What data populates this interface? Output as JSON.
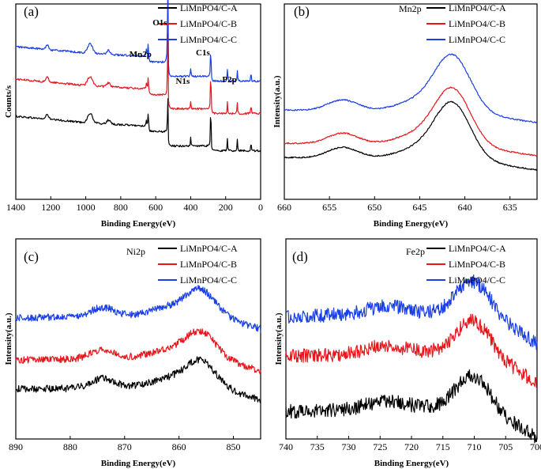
{
  "colors": {
    "A": "#000000",
    "B": "#e8161b",
    "C": "#1a3fe6"
  },
  "chart_data": [
    {
      "panel": "(a)",
      "type": "line",
      "xlabel": "Binding Energy(eV)",
      "ylabel": "Counts/s",
      "xlim": [
        1400,
        0
      ],
      "xticks": [
        1400,
        1200,
        1000,
        800,
        600,
        400,
        200,
        0
      ],
      "legend_placement": "top-right",
      "series": [
        {
          "name": "LiMnPO4/C-A",
          "key": "A",
          "offset": 0.0
        },
        {
          "name": "LiMnPO4/C-B",
          "key": "B",
          "offset": 1.0
        },
        {
          "name": "LiMnPO4/C-C",
          "key": "C",
          "offset": 2.0
        }
      ],
      "peaks": [
        {
          "label": "Mn2p",
          "x": 642
        },
        {
          "label": "O1s",
          "x": 531
        },
        {
          "label": "N1s",
          "x": 400
        },
        {
          "label": "C1s",
          "x": 285
        },
        {
          "label": "P2p",
          "x": 133
        }
      ]
    },
    {
      "panel": "(b)",
      "type": "line",
      "element": "Mn2p",
      "xlabel": "Binding Energy(eV)",
      "ylabel": "Intensity(a.u.)",
      "xlim": [
        660,
        632
      ],
      "xticks": [
        660,
        655,
        650,
        645,
        640,
        635
      ],
      "legend_placement": "top-right",
      "series": [
        {
          "name": "LiMnPO4/C-A",
          "key": "A"
        },
        {
          "name": "LiMnPO4/C-B",
          "key": "B"
        },
        {
          "name": "LiMnPO4/C-C",
          "key": "C"
        }
      ],
      "peaks": [
        {
          "x": 653.5
        },
        {
          "x": 641.5
        }
      ]
    },
    {
      "panel": "(c)",
      "type": "line",
      "element": "Ni2p",
      "xlabel": "Binding Energy(eV)",
      "ylabel": "Intensity(a.u.)",
      "xlim": [
        890,
        845
      ],
      "xticks": [
        890,
        880,
        870,
        860,
        850
      ],
      "legend_placement": "top-right",
      "series": [
        {
          "name": "LiMnPO4/C-A",
          "key": "A"
        },
        {
          "name": "LiMnPO4/C-B",
          "key": "B"
        },
        {
          "name": "LiMnPO4/C-C",
          "key": "C"
        }
      ],
      "peaks": [
        {
          "x": 874
        },
        {
          "x": 856
        }
      ]
    },
    {
      "panel": "(d)",
      "type": "line",
      "element": "Fe2p",
      "xlabel": "Binding Energy(eV)",
      "ylabel": "Intensity(a.u.)",
      "xlim": [
        740,
        700
      ],
      "xticks": [
        740,
        735,
        730,
        725,
        720,
        715,
        710,
        705,
        700
      ],
      "legend_placement": "top-right",
      "series": [
        {
          "name": "LiMnPO4/C-A",
          "key": "A"
        },
        {
          "name": "LiMnPO4/C-B",
          "key": "B"
        },
        {
          "name": "LiMnPO4/C-C",
          "key": "C"
        }
      ],
      "peaks": [
        {
          "x": 724
        },
        {
          "x": 710.5
        }
      ]
    }
  ]
}
